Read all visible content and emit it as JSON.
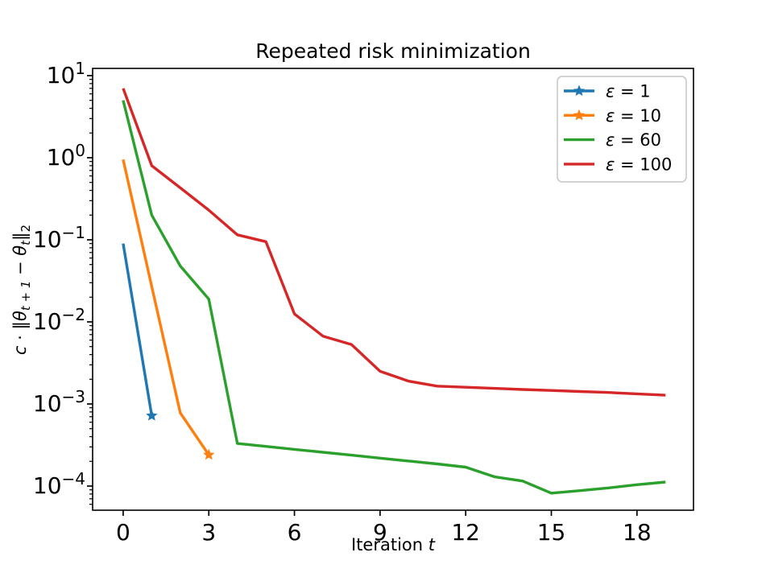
{
  "figure": {
    "title": "Repeated risk minimization",
    "xlabel": {
      "text": "Iteration ",
      "variable": "t"
    },
    "ylabel": {
      "coef": "c",
      "dot": " ⋅ ",
      "norm_open": "‖",
      "theta1": "θ",
      "sub1": "t + 1",
      "minus": " − ",
      "theta2": "θ",
      "sub2": "t",
      "norm_close": "‖",
      "norm_sub": "2"
    },
    "background_color": "#ffffff",
    "spine_color": "#000000"
  },
  "chart_data": {
    "type": "line",
    "title": "Repeated risk minimization",
    "xlabel": "Iteration t",
    "ylabel": "c ⋅ ‖θ_{t+1} − θ_t‖_2",
    "yscale": "log",
    "grid": false,
    "xlim": [
      -1.07,
      19.98
    ],
    "ylim": [
      5.08e-05,
      12.25
    ],
    "xticks": [
      0,
      3,
      6,
      9,
      12,
      15,
      18
    ],
    "ytick_exponents": [
      1,
      0,
      -1,
      -2,
      -3,
      -4
    ],
    "legend": {
      "position": "upper right",
      "border_color": "#cccccc",
      "entries": [
        "ε = 1",
        "ε = 10",
        "ε = 60",
        "ε = 100"
      ]
    },
    "series": [
      {
        "name": "ε = 1",
        "color": "#1f77b4",
        "marker": "star-at-end",
        "x": [
          0,
          1
        ],
        "y": [
          0.09,
          0.00072
        ]
      },
      {
        "name": "ε = 10",
        "color": "#ff7f0e",
        "marker": "star-at-end",
        "x": [
          0,
          1,
          2,
          3
        ],
        "y": [
          0.95,
          0.027,
          0.00078,
          0.00024
        ]
      },
      {
        "name": "ε = 60",
        "color": "#2ca02c",
        "marker": null,
        "x": [
          0,
          1,
          2,
          3,
          4,
          5,
          6,
          7,
          8,
          9,
          10,
          11,
          12,
          13,
          14,
          15,
          16,
          17,
          18,
          19
        ],
        "y": [
          5.0,
          0.2,
          0.048,
          0.019,
          0.00033,
          0.000304,
          0.00028,
          0.000258,
          0.000238,
          0.000219,
          0.000202,
          0.000186,
          0.00017,
          0.00013,
          0.000115,
          8.2e-05,
          8.8e-05,
          9.5e-05,
          0.000104,
          0.000112
        ]
      },
      {
        "name": "ε = 100",
        "color": "#d62728",
        "marker": null,
        "x": [
          0,
          1,
          2,
          3,
          4,
          5,
          6,
          7,
          8,
          9,
          10,
          11,
          12,
          13,
          14,
          15,
          16,
          17,
          18,
          19
        ],
        "y": [
          7.0,
          0.8,
          0.43,
          0.23,
          0.115,
          0.095,
          0.0125,
          0.0067,
          0.0053,
          0.0025,
          0.0019,
          0.00165,
          0.0016,
          0.00155,
          0.0015,
          0.00146,
          0.00142,
          0.00138,
          0.00133,
          0.00128
        ]
      }
    ]
  }
}
